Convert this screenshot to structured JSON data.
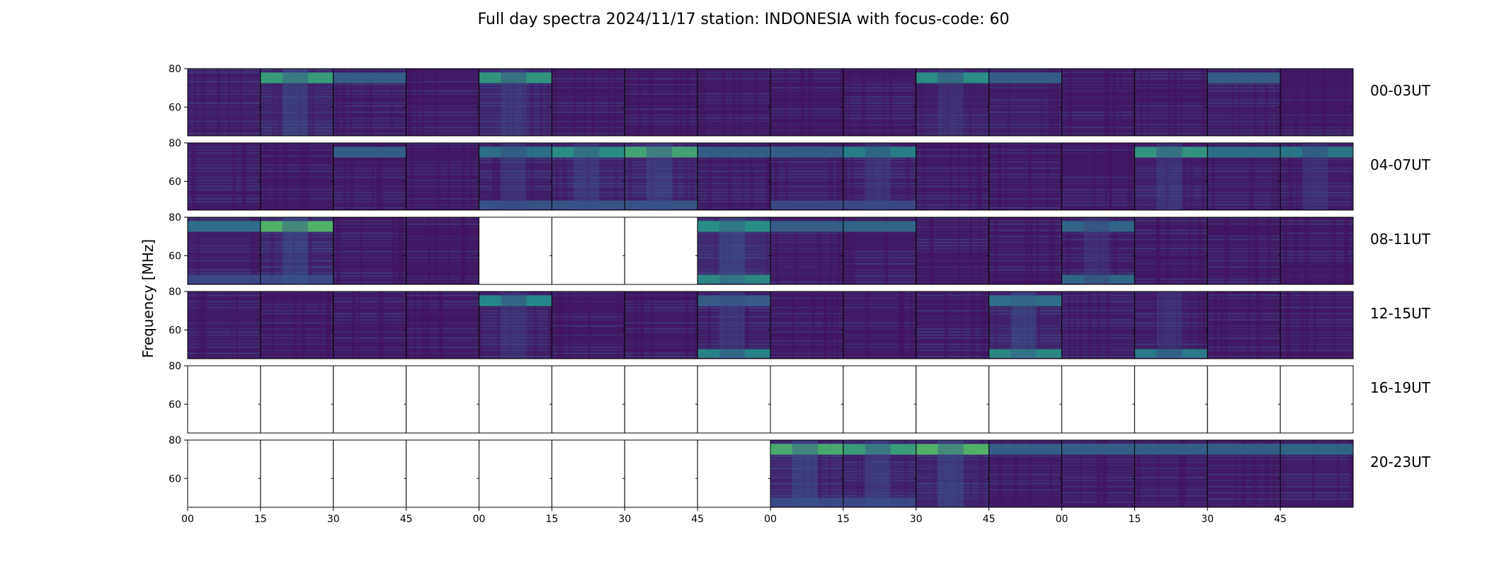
{
  "chart_data": {
    "type": "heatmap",
    "title": "Full day spectra 2024/11/17 station: INDONESIA with focus-code: 60",
    "ylabel": "Frequency [MHz]",
    "y_ticks": [
      "80",
      "60"
    ],
    "ylim": [
      45,
      80
    ],
    "x_ticks": [
      "00",
      "15",
      "30",
      "45",
      "00",
      "15",
      "30",
      "45",
      "00",
      "15",
      "30",
      "45",
      "00",
      "15",
      "30",
      "45"
    ],
    "colormap": "viridis",
    "rows": [
      {
        "label": "00-03UT",
        "panels": [
          {
            "has_data": true,
            "intensity": 0.25,
            "band": [
              0.05,
              0.1,
              0.0
            ]
          },
          {
            "has_data": true,
            "intensity": 0.3,
            "band": [
              0.5,
              0.1,
              0.45
            ]
          },
          {
            "has_data": true,
            "intensity": 0.22,
            "band": [
              0.1,
              0.15,
              0.1
            ]
          },
          {
            "has_data": true,
            "intensity": 0.2,
            "band": [
              0.0,
              0.1,
              0.0
            ]
          },
          {
            "has_data": true,
            "intensity": 0.28,
            "band": [
              0.45,
              0.12,
              0.3
            ]
          },
          {
            "has_data": true,
            "intensity": 0.2,
            "band": [
              0.0,
              0.1,
              0.0
            ]
          },
          {
            "has_data": true,
            "intensity": 0.2,
            "band": [
              0.0,
              0.1,
              0.0
            ]
          },
          {
            "has_data": true,
            "intensity": 0.2,
            "band": [
              0.0,
              0.1,
              0.0
            ]
          },
          {
            "has_data": true,
            "intensity": 0.2,
            "band": [
              0.0,
              0.1,
              0.0
            ]
          },
          {
            "has_data": true,
            "intensity": 0.2,
            "band": [
              0.0,
              0.1,
              0.0
            ]
          },
          {
            "has_data": true,
            "intensity": 0.26,
            "band": [
              0.4,
              0.15,
              0.2
            ]
          },
          {
            "has_data": true,
            "intensity": 0.22,
            "band": [
              0.1,
              0.1,
              0.1
            ]
          },
          {
            "has_data": true,
            "intensity": 0.2,
            "band": [
              0.0,
              0.1,
              0.0
            ]
          },
          {
            "has_data": true,
            "intensity": 0.2,
            "band": [
              0.0,
              0.1,
              0.0
            ]
          },
          {
            "has_data": true,
            "intensity": 0.22,
            "band": [
              0.1,
              0.1,
              0.0
            ]
          },
          {
            "has_data": true,
            "intensity": 0.2,
            "band": [
              0.0,
              0.1,
              0.0
            ]
          }
        ]
      },
      {
        "label": "04-07UT",
        "panels": [
          {
            "has_data": true,
            "intensity": 0.22,
            "band": [
              0.0,
              0.1,
              0.0
            ]
          },
          {
            "has_data": true,
            "intensity": 0.2,
            "band": [
              0.0,
              0.1,
              0.0
            ]
          },
          {
            "has_data": true,
            "intensity": 0.22,
            "band": [
              0.1,
              0.1,
              0.1
            ]
          },
          {
            "has_data": true,
            "intensity": 0.2,
            "band": [
              0.0,
              0.1,
              0.0
            ]
          },
          {
            "has_data": true,
            "intensity": 0.25,
            "band": [
              0.2,
              0.3,
              0.25
            ]
          },
          {
            "has_data": true,
            "intensity": 0.28,
            "band": [
              0.4,
              0.3,
              0.35
            ]
          },
          {
            "has_data": true,
            "intensity": 0.3,
            "band": [
              0.55,
              0.3,
              0.4
            ]
          },
          {
            "has_data": true,
            "intensity": 0.22,
            "band": [
              0.1,
              0.1,
              0.1
            ]
          },
          {
            "has_data": true,
            "intensity": 0.22,
            "band": [
              0.1,
              0.2,
              0.15
            ]
          },
          {
            "has_data": true,
            "intensity": 0.24,
            "band": [
              0.3,
              0.2,
              0.3
            ]
          },
          {
            "has_data": true,
            "intensity": 0.2,
            "band": [
              0.0,
              0.1,
              0.0
            ]
          },
          {
            "has_data": true,
            "intensity": 0.2,
            "band": [
              0.0,
              0.1,
              0.0
            ]
          },
          {
            "has_data": true,
            "intensity": 0.2,
            "band": [
              0.0,
              0.1,
              0.0
            ]
          },
          {
            "has_data": true,
            "intensity": 0.26,
            "band": [
              0.45,
              0.15,
              0.3
            ]
          },
          {
            "has_data": true,
            "intensity": 0.22,
            "band": [
              0.2,
              0.1,
              0.15
            ]
          },
          {
            "has_data": true,
            "intensity": 0.24,
            "band": [
              0.25,
              0.15,
              0.2
            ]
          }
        ]
      },
      {
        "label": "08-11UT",
        "panels": [
          {
            "has_data": true,
            "intensity": 0.25,
            "band": [
              0.2,
              0.2,
              0.1
            ]
          },
          {
            "has_data": true,
            "intensity": 0.3,
            "band": [
              0.65,
              0.2,
              0.5
            ]
          },
          {
            "has_data": true,
            "intensity": 0.2,
            "band": [
              0.05,
              0.1,
              0.0
            ]
          },
          {
            "has_data": true,
            "intensity": 0.2,
            "band": [
              0.05,
              0.1,
              0.0
            ]
          },
          {
            "has_data": false
          },
          {
            "has_data": false
          },
          {
            "has_data": false
          },
          {
            "has_data": true,
            "intensity": 0.35,
            "band": [
              0.4,
              0.85,
              0.55
            ]
          },
          {
            "has_data": true,
            "intensity": 0.22,
            "band": [
              0.1,
              0.1,
              0.1
            ]
          },
          {
            "has_data": true,
            "intensity": 0.22,
            "band": [
              0.15,
              0.1,
              0.1
            ]
          },
          {
            "has_data": true,
            "intensity": 0.2,
            "band": [
              0.05,
              0.1,
              0.0
            ]
          },
          {
            "has_data": true,
            "intensity": 0.2,
            "band": [
              0.0,
              0.1,
              0.0
            ]
          },
          {
            "has_data": true,
            "intensity": 0.22,
            "band": [
              0.15,
              0.5,
              0.2
            ]
          },
          {
            "has_data": true,
            "intensity": 0.2,
            "band": [
              0.0,
              0.1,
              0.0
            ]
          },
          {
            "has_data": true,
            "intensity": 0.2,
            "band": [
              0.0,
              0.1,
              0.0
            ]
          },
          {
            "has_data": true,
            "intensity": 0.2,
            "band": [
              0.0,
              0.1,
              0.0
            ]
          }
        ]
      },
      {
        "label": "12-15UT",
        "panels": [
          {
            "has_data": true,
            "intensity": 0.22,
            "band": [
              0.05,
              0.1,
              0.0
            ]
          },
          {
            "has_data": true,
            "intensity": 0.2,
            "band": [
              0.0,
              0.1,
              0.0
            ]
          },
          {
            "has_data": true,
            "intensity": 0.2,
            "band": [
              0.0,
              0.1,
              0.0
            ]
          },
          {
            "has_data": true,
            "intensity": 0.2,
            "band": [
              0.0,
              0.1,
              0.0
            ]
          },
          {
            "has_data": true,
            "intensity": 0.25,
            "band": [
              0.35,
              0.12,
              0.2
            ]
          },
          {
            "has_data": true,
            "intensity": 0.2,
            "band": [
              0.0,
              0.1,
              0.0
            ]
          },
          {
            "has_data": true,
            "intensity": 0.2,
            "band": [
              0.0,
              0.1,
              0.0
            ]
          },
          {
            "has_data": true,
            "intensity": 0.24,
            "band": [
              0.1,
              0.8,
              0.3
            ]
          },
          {
            "has_data": true,
            "intensity": 0.2,
            "band": [
              0.0,
              0.1,
              0.0
            ]
          },
          {
            "has_data": true,
            "intensity": 0.2,
            "band": [
              0.0,
              0.1,
              0.0
            ]
          },
          {
            "has_data": true,
            "intensity": 0.2,
            "band": [
              0.0,
              0.1,
              0.0
            ]
          },
          {
            "has_data": true,
            "intensity": 0.28,
            "band": [
              0.2,
              0.85,
              0.55
            ]
          },
          {
            "has_data": true,
            "intensity": 0.22,
            "band": [
              0.05,
              0.1,
              0.05
            ]
          },
          {
            "has_data": true,
            "intensity": 0.22,
            "band": [
              0.05,
              0.7,
              0.2
            ]
          },
          {
            "has_data": true,
            "intensity": 0.2,
            "band": [
              0.0,
              0.1,
              0.0
            ]
          },
          {
            "has_data": true,
            "intensity": 0.2,
            "band": [
              0.0,
              0.1,
              0.0
            ]
          }
        ]
      },
      {
        "label": "16-19UT",
        "panels": [
          {
            "has_data": false
          },
          {
            "has_data": false
          },
          {
            "has_data": false
          },
          {
            "has_data": false
          },
          {
            "has_data": false
          },
          {
            "has_data": false
          },
          {
            "has_data": false
          },
          {
            "has_data": false
          },
          {
            "has_data": false
          },
          {
            "has_data": false
          },
          {
            "has_data": false
          },
          {
            "has_data": false
          },
          {
            "has_data": false
          },
          {
            "has_data": false
          },
          {
            "has_data": false
          },
          {
            "has_data": false
          }
        ]
      },
      {
        "label": "20-23UT",
        "panels": [
          {
            "has_data": false
          },
          {
            "has_data": false
          },
          {
            "has_data": false
          },
          {
            "has_data": false
          },
          {
            "has_data": false
          },
          {
            "has_data": false
          },
          {
            "has_data": false
          },
          {
            "has_data": false
          },
          {
            "has_data": true,
            "intensity": 0.3,
            "band": [
              0.6,
              0.2,
              0.5
            ]
          },
          {
            "has_data": true,
            "intensity": 0.28,
            "band": [
              0.5,
              0.2,
              0.4
            ]
          },
          {
            "has_data": true,
            "intensity": 0.3,
            "band": [
              0.65,
              0.15,
              0.55
            ]
          },
          {
            "has_data": true,
            "intensity": 0.22,
            "band": [
              0.1,
              0.1,
              0.1
            ]
          },
          {
            "has_data": true,
            "intensity": 0.22,
            "band": [
              0.1,
              0.1,
              0.1
            ]
          },
          {
            "has_data": true,
            "intensity": 0.22,
            "band": [
              0.1,
              0.1,
              0.1
            ]
          },
          {
            "has_data": true,
            "intensity": 0.22,
            "band": [
              0.1,
              0.1,
              0.1
            ]
          },
          {
            "has_data": true,
            "intensity": 0.24,
            "band": [
              0.15,
              0.1,
              0.15
            ]
          }
        ]
      }
    ]
  }
}
